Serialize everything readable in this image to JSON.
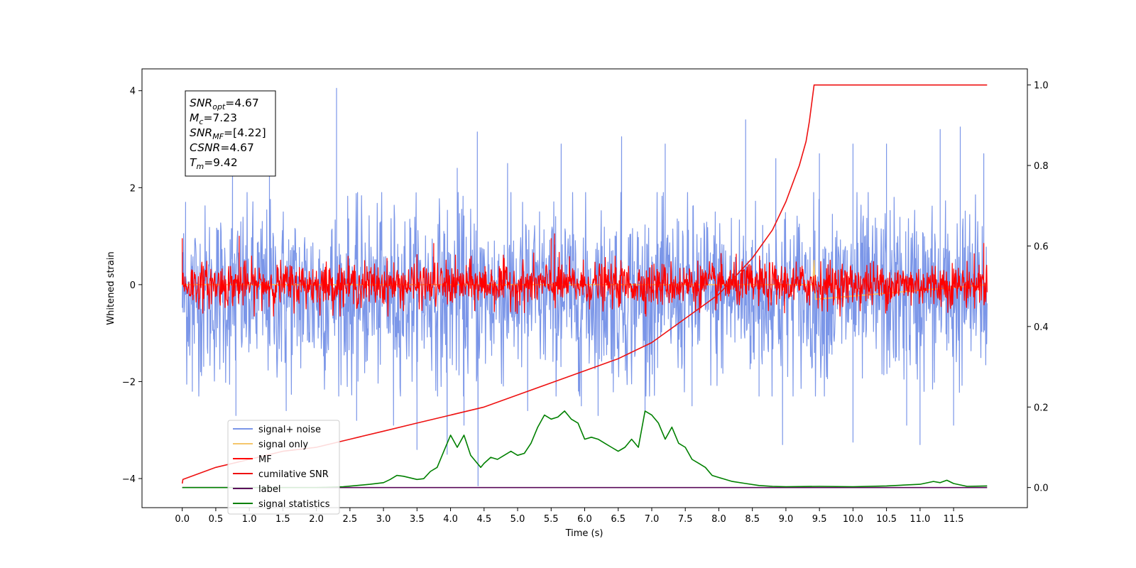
{
  "chart_data": {
    "type": "line",
    "xlabel": "Time (s)",
    "ylabel": "Whitened strain",
    "ylabel_right": "",
    "xlim": [
      -0.6,
      12.6
    ],
    "ylim": [
      -4.6,
      4.45
    ],
    "ylim_right": [
      -0.05,
      1.04
    ],
    "x_ticks": [
      "0.0",
      "0.5",
      "1.0",
      "1.5",
      "2.0",
      "2.5",
      "3.0",
      "3.5",
      "4.0",
      "4.5",
      "5.0",
      "5.5",
      "6.0",
      "6.5",
      "7.0",
      "7.5",
      "8.0",
      "8.5",
      "9.0",
      "9.5",
      "10.0",
      "10.5",
      "11.0",
      "11.5"
    ],
    "y_ticks_left": [
      "−4",
      "−2",
      "0",
      "2",
      "4"
    ],
    "y_ticks_right": [
      "0.0",
      "0.2",
      "0.4",
      "0.6",
      "0.8",
      "1.0"
    ],
    "grid": false,
    "legend_position": "lower-left",
    "colors": {
      "signal_noise": "#7b96e8",
      "signal_only": "#f5c66b",
      "mf": "#ff0000",
      "cumulative_snr": "#ee1111",
      "label": "#5a0a5a",
      "signal_statistics": "#008000"
    },
    "series": [
      {
        "name": "signal+ noise",
        "axis": "left",
        "style": "noise",
        "x_range": [
          0.0,
          12.0
        ],
        "mean": -0.2,
        "approx_range": [
          -2.0,
          1.6
        ],
        "spikes": [
          {
            "x": 0.05,
            "y": 1.7
          },
          {
            "x": 0.15,
            "y": -2.2
          },
          {
            "x": 0.75,
            "y": 2.3
          },
          {
            "x": 0.8,
            "y": -2.7
          },
          {
            "x": 1.3,
            "y": 3.0
          },
          {
            "x": 1.55,
            "y": -2.6
          },
          {
            "x": 2.3,
            "y": 4.05
          },
          {
            "x": 2.6,
            "y": -2.8
          },
          {
            "x": 3.15,
            "y": -2.9
          },
          {
            "x": 3.5,
            "y": -3.4
          },
          {
            "x": 3.95,
            "y": -3.5
          },
          {
            "x": 4.1,
            "y": 2.4
          },
          {
            "x": 4.2,
            "y": -2.9
          },
          {
            "x": 4.4,
            "y": 3.15
          },
          {
            "x": 4.41,
            "y": -4.15
          },
          {
            "x": 4.85,
            "y": 2.5
          },
          {
            "x": 5.15,
            "y": -2.6
          },
          {
            "x": 5.65,
            "y": 2.9
          },
          {
            "x": 5.95,
            "y": -2.5
          },
          {
            "x": 6.2,
            "y": -2.7
          },
          {
            "x": 6.55,
            "y": 3.05
          },
          {
            "x": 6.9,
            "y": -2.6
          },
          {
            "x": 7.2,
            "y": 2.9
          },
          {
            "x": 7.6,
            "y": -2.5
          },
          {
            "x": 8.4,
            "y": 3.4
          },
          {
            "x": 8.6,
            "y": -2.3
          },
          {
            "x": 8.85,
            "y": 2.6
          },
          {
            "x": 8.95,
            "y": -3.3
          },
          {
            "x": 9.5,
            "y": 2.7
          },
          {
            "x": 10.0,
            "y": 2.9
          },
          {
            "x": 10.0,
            "y": -3.25
          },
          {
            "x": 10.5,
            "y": 2.9
          },
          {
            "x": 10.8,
            "y": -2.9
          },
          {
            "x": 11.0,
            "y": -3.3
          },
          {
            "x": 11.3,
            "y": 3.2
          },
          {
            "x": 11.5,
            "y": -2.9
          },
          {
            "x": 11.6,
            "y": 3.25
          },
          {
            "x": 11.95,
            "y": 2.7
          }
        ]
      },
      {
        "name": "signal only",
        "axis": "left",
        "style": "flat",
        "x": [
          0.0,
          9.4,
          9.42,
          9.44,
          12.0
        ],
        "y": [
          0.0,
          0.0,
          0.5,
          -0.3,
          0.0
        ]
      },
      {
        "name": "MF",
        "axis": "left",
        "style": "noise",
        "x_range": [
          0.0,
          12.0
        ],
        "mean": 0.0,
        "approx_range": [
          -0.35,
          0.55
        ],
        "spikes": [
          {
            "x": 0.0,
            "y": 0.95
          },
          {
            "x": 0.0,
            "y": 0.65
          },
          {
            "x": 0.85,
            "y": 1.0
          },
          {
            "x": 3.75,
            "y": 0.85
          },
          {
            "x": 5.5,
            "y": 0.95
          },
          {
            "x": 5.55,
            "y": 1.05
          },
          {
            "x": 11.95,
            "y": 0.85
          }
        ]
      },
      {
        "name": "cumilative SNR",
        "axis": "right",
        "style": "line",
        "x": [
          0.0,
          0.01,
          0.5,
          1.0,
          1.5,
          2.0,
          2.5,
          3.0,
          3.5,
          4.0,
          4.5,
          5.0,
          5.5,
          6.0,
          6.5,
          7.0,
          7.5,
          8.0,
          8.5,
          8.8,
          9.0,
          9.2,
          9.3,
          9.35,
          9.42,
          10.0,
          12.0
        ],
        "y": [
          0.01,
          0.02,
          0.05,
          0.07,
          0.09,
          0.1,
          0.12,
          0.14,
          0.16,
          0.18,
          0.2,
          0.23,
          0.26,
          0.29,
          0.32,
          0.36,
          0.42,
          0.48,
          0.57,
          0.64,
          0.71,
          0.8,
          0.86,
          0.91,
          1.0,
          1.0,
          1.0
        ]
      },
      {
        "name": "label",
        "axis": "right",
        "style": "line",
        "x": [
          0.0,
          12.0
        ],
        "y": [
          0.0,
          0.0
        ]
      },
      {
        "name": "signal statistics",
        "axis": "right",
        "style": "line",
        "x": [
          0.0,
          1.0,
          2.0,
          2.4,
          2.6,
          2.8,
          3.0,
          3.1,
          3.2,
          3.3,
          3.5,
          3.6,
          3.7,
          3.8,
          3.9,
          4.0,
          4.1,
          4.2,
          4.3,
          4.4,
          4.45,
          4.5,
          4.6,
          4.7,
          4.8,
          4.9,
          5.0,
          5.1,
          5.2,
          5.3,
          5.4,
          5.5,
          5.6,
          5.7,
          5.8,
          5.9,
          6.0,
          6.1,
          6.2,
          6.3,
          6.4,
          6.5,
          6.6,
          6.7,
          6.8,
          6.9,
          7.0,
          7.1,
          7.2,
          7.3,
          7.4,
          7.5,
          7.6,
          7.7,
          7.8,
          7.9,
          8.0,
          8.2,
          8.4,
          8.6,
          8.8,
          9.0,
          9.5,
          10.0,
          10.5,
          11.0,
          11.2,
          11.3,
          11.4,
          11.5,
          11.7,
          12.0
        ],
        "y": [
          0.0,
          0.0,
          0.0,
          0.002,
          0.005,
          0.008,
          0.012,
          0.02,
          0.03,
          0.028,
          0.02,
          0.022,
          0.04,
          0.05,
          0.09,
          0.13,
          0.1,
          0.13,
          0.08,
          0.06,
          0.05,
          0.06,
          0.075,
          0.07,
          0.08,
          0.09,
          0.08,
          0.085,
          0.11,
          0.15,
          0.18,
          0.17,
          0.175,
          0.19,
          0.17,
          0.16,
          0.12,
          0.125,
          0.12,
          0.11,
          0.1,
          0.09,
          0.1,
          0.12,
          0.1,
          0.19,
          0.18,
          0.16,
          0.12,
          0.15,
          0.11,
          0.1,
          0.07,
          0.06,
          0.05,
          0.03,
          0.025,
          0.015,
          0.01,
          0.005,
          0.003,
          0.002,
          0.003,
          0.002,
          0.004,
          0.008,
          0.015,
          0.012,
          0.018,
          0.01,
          0.003,
          0.004
        ]
      }
    ],
    "legend": [
      "signal+ noise",
      "signal only",
      "MF",
      "cumilative SNR",
      "label",
      "signal statistics"
    ],
    "info_box": [
      {
        "base": "SNR",
        "sub": "opt",
        "rest": "=4.67"
      },
      {
        "base": "M",
        "sub": "c",
        "rest": "=7.23"
      },
      {
        "base": "SNR",
        "sub": "MF",
        "rest": "=[4.22]"
      },
      {
        "base": "CSNR",
        "sub": "",
        "rest": "=4.67"
      },
      {
        "base": "T",
        "sub": "m",
        "rest": "=9.42"
      }
    ]
  }
}
